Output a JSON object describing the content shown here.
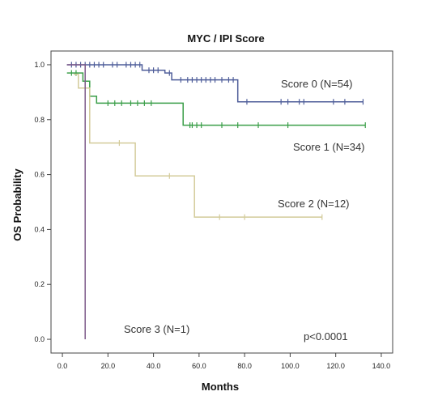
{
  "chart_data": {
    "type": "line",
    "step": true,
    "title": "MYC / IPI Score",
    "xlabel": "Months",
    "ylabel": "OS Probability",
    "xlim": [
      -5,
      145
    ],
    "ylim": [
      -0.05,
      1.05
    ],
    "xticks": [
      0,
      20,
      40,
      60,
      80,
      100,
      120,
      140
    ],
    "xtick_labels": [
      "0.0",
      "20.0",
      "40.0",
      "60.0",
      "80.0",
      "100.0",
      "120.0",
      "140.0"
    ],
    "yticks": [
      0.0,
      0.2,
      0.4,
      0.6,
      0.8,
      1.0
    ],
    "ytick_labels": [
      "0.0",
      "0.2",
      "0.4",
      "0.6",
      "0.8",
      "1.0"
    ],
    "grid": false,
    "series": [
      {
        "name": "Score 0 (N=54)",
        "color": "#4f5e9a",
        "steps": [
          [
            2,
            1.0
          ],
          [
            35,
            1.0
          ],
          [
            35,
            0.98
          ],
          [
            45,
            0.98
          ],
          [
            45,
            0.97
          ],
          [
            48,
            0.97
          ],
          [
            48,
            0.945
          ],
          [
            77,
            0.945
          ],
          [
            77,
            0.865
          ],
          [
            132,
            0.865
          ]
        ],
        "censored": [
          [
            4,
            1.0
          ],
          [
            6,
            1.0
          ],
          [
            8,
            1.0
          ],
          [
            10,
            1.0
          ],
          [
            12,
            1.0
          ],
          [
            14,
            1.0
          ],
          [
            16,
            1.0
          ],
          [
            18,
            1.0
          ],
          [
            22,
            1.0
          ],
          [
            24,
            1.0
          ],
          [
            28,
            1.0
          ],
          [
            30,
            1.0
          ],
          [
            32,
            1.0
          ],
          [
            34,
            1.0
          ],
          [
            38,
            0.98
          ],
          [
            40,
            0.98
          ],
          [
            42,
            0.98
          ],
          [
            47,
            0.97
          ],
          [
            52,
            0.945
          ],
          [
            55,
            0.945
          ],
          [
            57,
            0.945
          ],
          [
            59,
            0.945
          ],
          [
            61,
            0.945
          ],
          [
            63,
            0.945
          ],
          [
            65,
            0.945
          ],
          [
            67,
            0.945
          ],
          [
            70,
            0.945
          ],
          [
            73,
            0.945
          ],
          [
            75,
            0.945
          ],
          [
            81,
            0.865
          ],
          [
            96,
            0.865
          ],
          [
            99,
            0.865
          ],
          [
            104,
            0.865
          ],
          [
            106,
            0.865
          ],
          [
            119,
            0.865
          ],
          [
            124,
            0.865
          ],
          [
            132,
            0.865
          ]
        ]
      },
      {
        "name": "Score 1 (N=34)",
        "color": "#3a9e48",
        "steps": [
          [
            2,
            0.97
          ],
          [
            9,
            0.97
          ],
          [
            9,
            0.94
          ],
          [
            12,
            0.94
          ],
          [
            12,
            0.885
          ],
          [
            15,
            0.885
          ],
          [
            15,
            0.86
          ],
          [
            53,
            0.86
          ],
          [
            53,
            0.78
          ],
          [
            133,
            0.78
          ]
        ],
        "censored": [
          [
            4,
            0.97
          ],
          [
            6,
            0.97
          ],
          [
            10,
            0.94
          ],
          [
            20,
            0.86
          ],
          [
            23,
            0.86
          ],
          [
            26,
            0.86
          ],
          [
            30,
            0.86
          ],
          [
            33,
            0.86
          ],
          [
            36,
            0.86
          ],
          [
            39,
            0.86
          ],
          [
            56,
            0.78
          ],
          [
            57,
            0.78
          ],
          [
            59,
            0.78
          ],
          [
            61,
            0.78
          ],
          [
            70,
            0.78
          ],
          [
            77,
            0.78
          ],
          [
            86,
            0.78
          ],
          [
            99,
            0.78
          ],
          [
            133,
            0.78
          ]
        ]
      },
      {
        "name": "Score 2 (N=12)",
        "color": "#d3cb9a",
        "steps": [
          [
            5,
            0.965
          ],
          [
            7,
            0.965
          ],
          [
            7,
            0.915
          ],
          [
            12,
            0.915
          ],
          [
            12,
            0.715
          ],
          [
            32,
            0.715
          ],
          [
            32,
            0.595
          ],
          [
            58,
            0.595
          ],
          [
            58,
            0.445
          ],
          [
            114,
            0.445
          ]
        ],
        "censored": [
          [
            25,
            0.715
          ],
          [
            47,
            0.595
          ],
          [
            69,
            0.445
          ],
          [
            80,
            0.445
          ],
          [
            114,
            0.445
          ]
        ]
      },
      {
        "name": "Score 3 (N=1)",
        "color": "#7e5a8a",
        "steps": [
          [
            2,
            1.0
          ],
          [
            10,
            1.0
          ],
          [
            10,
            0.0
          ]
        ],
        "censored": []
      }
    ],
    "annotations": [
      {
        "text": "p<0.0001"
      }
    ]
  }
}
